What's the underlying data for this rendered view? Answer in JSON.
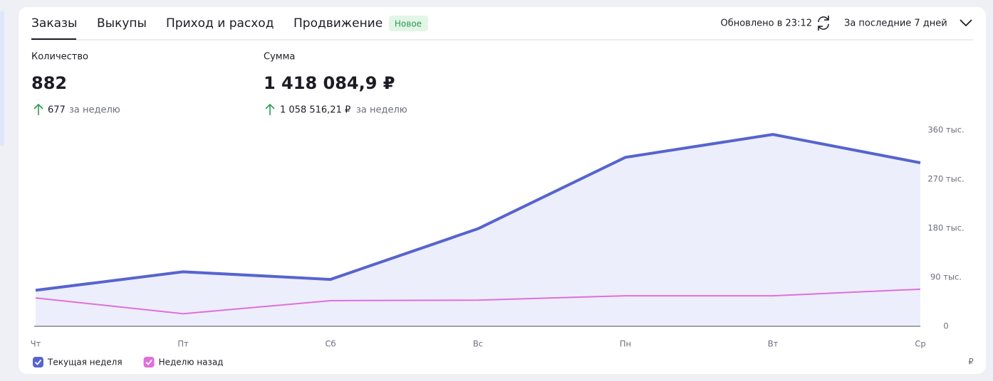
{
  "header": {
    "tabs": [
      "Заказы",
      "Выкупы",
      "Приход и расход",
      "Продвижение"
    ],
    "badge": "Новое",
    "updated": "Обновлено в 23:12",
    "period": "За последние 7 дней"
  },
  "metrics": [
    {
      "label": "Количество",
      "value": 882,
      "change": 677,
      "change_note": "за неделю"
    },
    {
      "label": "Сумма",
      "value": "1 418 084,9 ₽",
      "change": "1 058 516,21 ₽",
      "change_note": "за неделю"
    }
  ],
  "chart_data": {
    "type": "area-line",
    "categories": [
      "Чт",
      "Пт",
      "Сб",
      "Вс",
      "Пн",
      "Вт",
      "Ср"
    ],
    "series": [
      {
        "name": "Текущая неделя",
        "color": "#5664cf",
        "values": [
          66000,
          100000,
          86000,
          179000,
          310000,
          352000,
          300000
        ]
      },
      {
        "name": "Неделю назад",
        "color": "#e06fd9",
        "values": [
          52000,
          23000,
          47000,
          48000,
          56000,
          56000,
          68000
        ]
      }
    ],
    "ylim": [
      0,
      360000
    ],
    "yticks": [
      0,
      {
        "value": 90000,
        "label": "90 тыс."
      },
      {
        "value": 180000,
        "label": "180 тыс."
      },
      {
        "value": 270000,
        "label": "270 тыс."
      },
      {
        "value": 360000,
        "label": "360 тыс."
      }
    ],
    "y_unit": "₽",
    "area_fill": "#eceefb"
  }
}
